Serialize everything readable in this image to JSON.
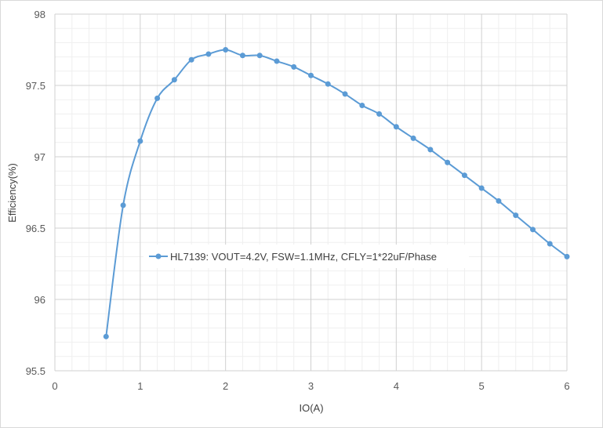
{
  "chart_data": {
    "type": "scatter",
    "xlabel": "IO(A)",
    "ylabel": "Efficiency(%)",
    "xlim": [
      0,
      6
    ],
    "ylim": [
      95.5,
      98
    ],
    "xticks": [
      0,
      1,
      2,
      3,
      4,
      5,
      6
    ],
    "yticks": [
      95.5,
      96,
      96.5,
      97,
      97.5,
      98
    ],
    "xtick_labels": [
      "0",
      "1",
      "2",
      "3",
      "4",
      "5",
      "6"
    ],
    "ytick_labels": [
      "95.5",
      "96",
      "96.5",
      "97",
      "97.5",
      "98"
    ],
    "grid": true,
    "legend_position": "center",
    "series": [
      {
        "name": "HL7139: VOUT=4.2V, FSW=1.1MHz, CFLY=1*22uF/Phase",
        "color": "#5b9bd5",
        "marker": "circle",
        "smooth": true,
        "x": [
          0.6,
          0.8,
          1.0,
          1.2,
          1.4,
          1.6,
          1.8,
          2.0,
          2.2,
          2.4,
          2.6,
          2.8,
          3.0,
          3.2,
          3.4,
          3.6,
          3.8,
          4.0,
          4.2,
          4.4,
          4.6,
          4.8,
          5.0,
          5.2,
          5.4,
          5.6,
          5.8,
          6.0
        ],
        "y": [
          95.74,
          96.66,
          97.11,
          97.41,
          97.54,
          97.68,
          97.72,
          97.75,
          97.71,
          97.71,
          97.67,
          97.63,
          97.57,
          97.51,
          97.44,
          97.36,
          97.3,
          97.21,
          97.13,
          97.05,
          96.96,
          96.87,
          96.78,
          96.69,
          96.59,
          96.49,
          96.39,
          96.3
        ]
      }
    ]
  }
}
